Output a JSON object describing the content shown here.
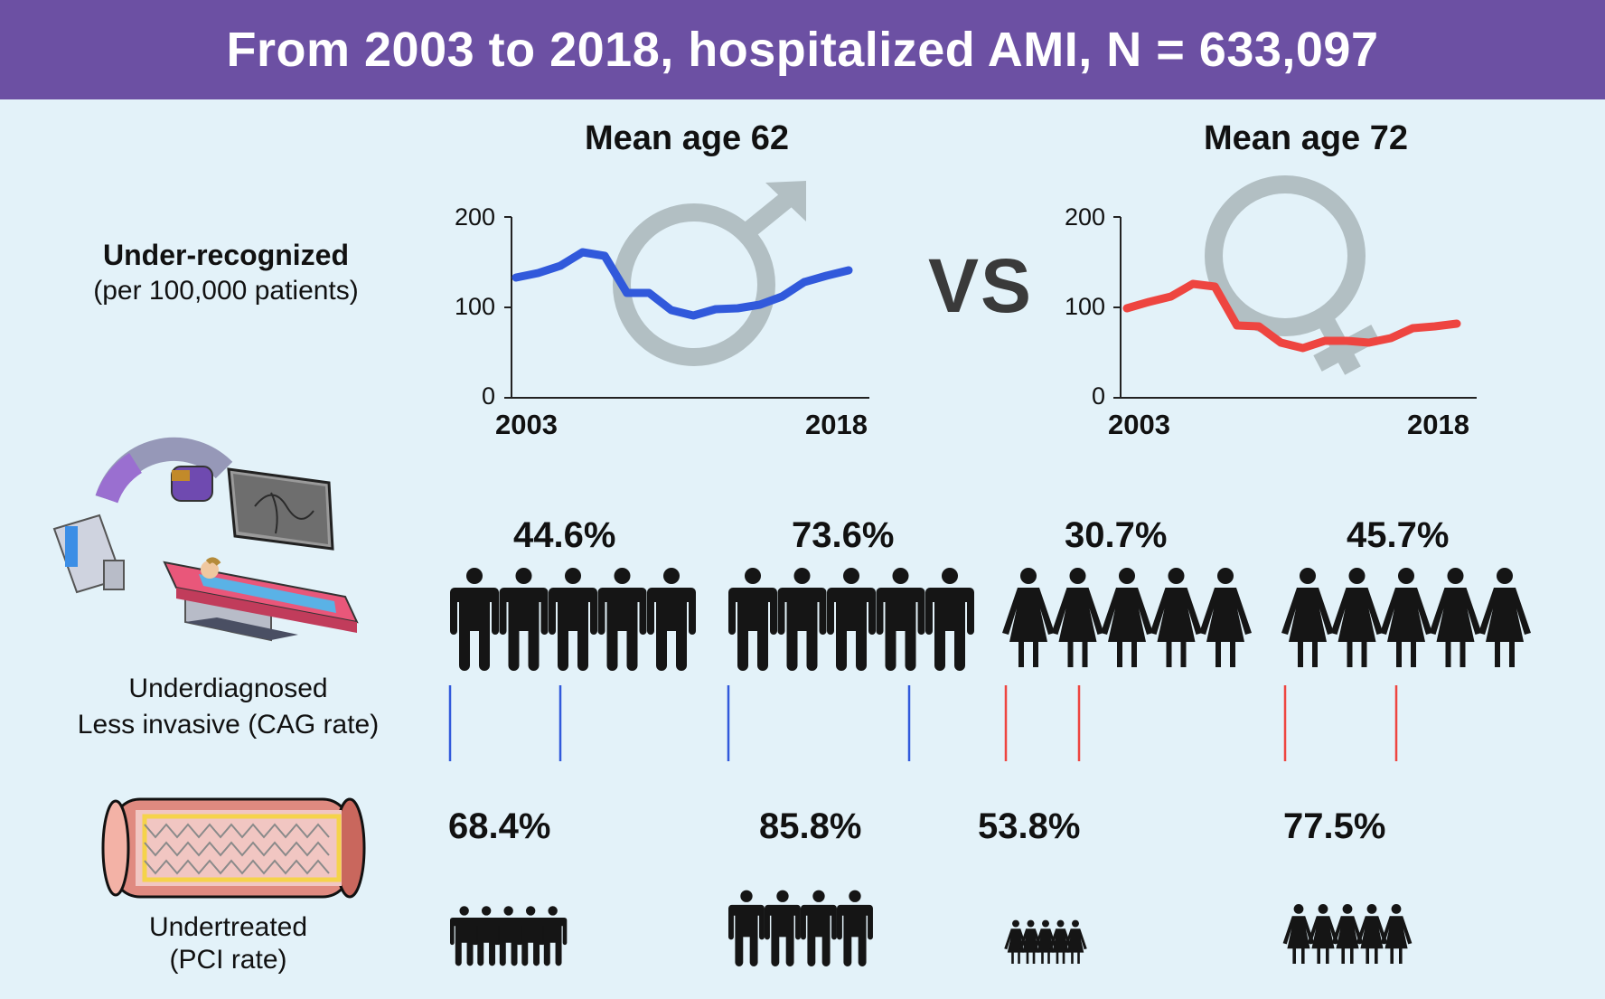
{
  "header": {
    "title": "From 2003 to 2018, hospitalized AMI, N = 633,097"
  },
  "row_labels": {
    "under_recognized": "Under-recognized",
    "per_patients": "(per 100,000 patients)",
    "underdiagnosed": "Underdiagnosed",
    "less_invasive": "Less invasive (CAG rate)",
    "undertreated": "Undertreated",
    "pci_rate": "(PCI rate)"
  },
  "vs_label": "VS",
  "colors": {
    "header_bg": "#6c50a3",
    "panel_bg": "#e3f2f9",
    "male": "#3159db",
    "female": "#ee4540",
    "neutral": "#151515",
    "symbol": "#b2bfc3"
  },
  "chart_data": [
    {
      "type": "line",
      "title": "Mean age 62",
      "series_name": "Male",
      "x": [
        2003,
        2004,
        2005,
        2006,
        2007,
        2008,
        2009,
        2010,
        2011,
        2012,
        2013,
        2014,
        2015,
        2016,
        2017,
        2018
      ],
      "values": [
        133,
        138,
        146,
        161,
        157,
        116,
        116,
        97,
        91,
        98,
        99,
        103,
        112,
        128,
        135,
        141
      ],
      "xticklabels": [
        "2003",
        "2018"
      ],
      "yticks": [
        "0",
        "100",
        "200"
      ],
      "ylim": [
        0,
        200
      ]
    },
    {
      "type": "line",
      "title": "Mean age 72",
      "series_name": "Female",
      "x": [
        2003,
        2004,
        2005,
        2006,
        2007,
        2008,
        2009,
        2010,
        2011,
        2012,
        2013,
        2014,
        2015,
        2016,
        2017,
        2018
      ],
      "values": [
        99,
        106,
        112,
        126,
        123,
        80,
        79,
        61,
        55,
        63,
        63,
        61,
        66,
        77,
        79,
        82
      ],
      "xticklabels": [
        "2003",
        "2018"
      ],
      "yticks": [
        "0",
        "100",
        "200"
      ],
      "ylim": [
        0,
        200
      ]
    }
  ],
  "cag_rates": [
    {
      "label": "44.6%",
      "value": 44.6,
      "gender": "male"
    },
    {
      "label": "73.6%",
      "value": 73.6,
      "gender": "male"
    },
    {
      "label": "30.7%",
      "value": 30.7,
      "gender": "female"
    },
    {
      "label": "45.7%",
      "value": 45.7,
      "gender": "female"
    }
  ],
  "pci_rates": [
    {
      "label": "68.4%",
      "value": 68.4,
      "gender": "male"
    },
    {
      "label": "85.8%",
      "value": 85.8,
      "gender": "male"
    },
    {
      "label": "53.8%",
      "value": 53.8,
      "gender": "female"
    },
    {
      "label": "77.5%",
      "value": 77.5,
      "gender": "female"
    }
  ]
}
